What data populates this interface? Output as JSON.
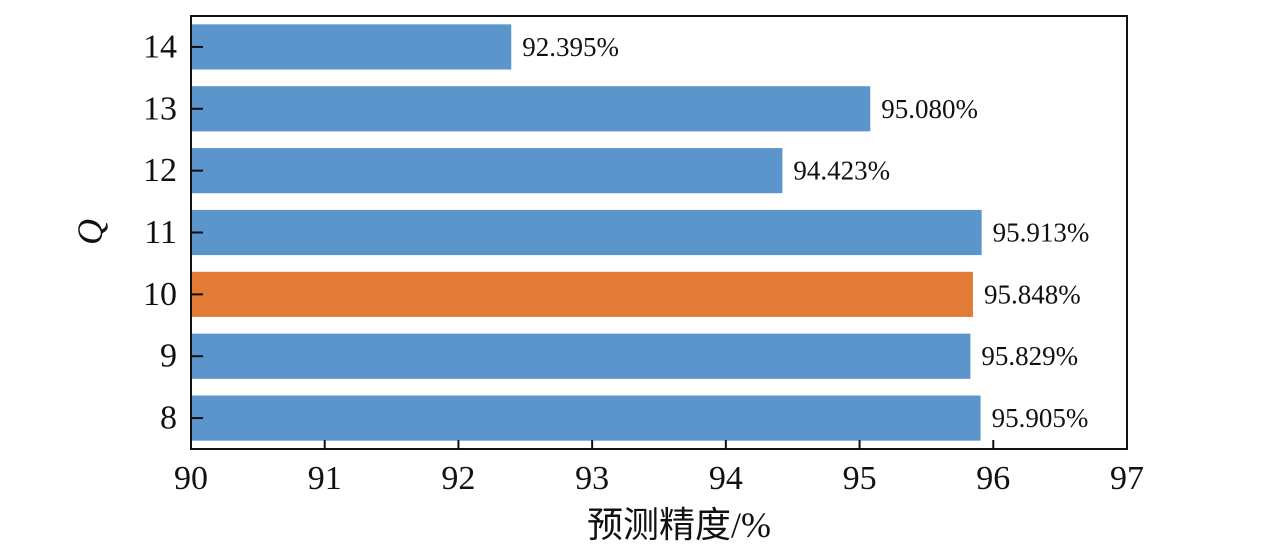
{
  "chart_data": {
    "type": "bar",
    "orientation": "horizontal",
    "categories": [
      "8",
      "9",
      "10",
      "11",
      "12",
      "13",
      "14"
    ],
    "values": [
      95.905,
      95.829,
      95.848,
      95.913,
      94.423,
      95.08,
      92.395
    ],
    "data_labels": [
      "95.905%",
      "95.829%",
      "95.848%",
      "95.913%",
      "94.423%",
      "95.080%",
      "92.395%"
    ],
    "highlight_category": "10",
    "xlabel": "预测精度/%",
    "ylabel": "Q",
    "xlim": [
      90,
      97
    ],
    "xticks": [
      90,
      91,
      92,
      93,
      94,
      95,
      96,
      97
    ],
    "grid": false,
    "colors": {
      "bar": "#5b95cb",
      "highlight": "#e27b35",
      "axis": "#111111"
    }
  }
}
